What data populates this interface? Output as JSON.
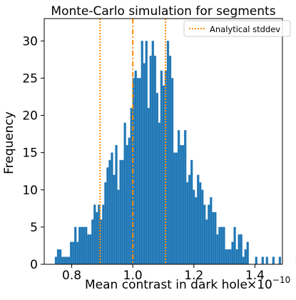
{
  "chart_data": {
    "type": "histogram",
    "title": "Monte-Carlo simulation for segments",
    "xlabel": "Mean contrast in dark hole",
    "ylabel": "Frequency",
    "x_scale_text": "×10",
    "x_scale_exponent": "−10",
    "xlim": [
      0.71,
      1.49
    ],
    "ylim": [
      0,
      33
    ],
    "x_ticks": [
      {
        "value": 0.8,
        "label": "0.8"
      },
      {
        "value": 1.0,
        "label": "1.0"
      },
      {
        "value": 1.2,
        "label": "1.2"
      },
      {
        "value": 1.4,
        "label": "1.4"
      }
    ],
    "y_ticks": [
      {
        "value": 0,
        "label": "0"
      },
      {
        "value": 5,
        "label": "5"
      },
      {
        "value": 10,
        "label": "10"
      },
      {
        "value": 15,
        "label": "15"
      },
      {
        "value": 20,
        "label": "20"
      },
      {
        "value": 25,
        "label": "25"
      },
      {
        "value": 30,
        "label": "30"
      }
    ],
    "bin_start": 0.745,
    "bin_width": 0.00705,
    "counts": [
      1,
      2,
      2,
      1,
      1,
      1,
      1,
      3,
      3,
      5,
      3,
      5,
      5,
      5,
      5,
      4,
      4,
      6,
      8,
      7,
      8,
      6,
      8,
      11,
      13,
      14,
      15,
      12,
      16,
      10,
      14,
      14,
      19,
      16,
      17,
      21,
      25,
      26,
      25,
      25,
      30,
      27,
      30,
      21,
      28,
      30,
      28,
      23,
      19,
      26,
      24,
      26,
      30,
      28,
      25,
      15,
      15,
      18,
      16,
      16,
      18,
      11,
      12,
      14,
      10,
      9,
      12,
      11,
      10,
      8,
      6,
      8,
      9,
      7,
      7,
      4,
      5,
      5,
      5,
      2,
      2,
      2,
      3,
      5,
      2,
      4,
      4,
      1,
      2,
      3,
      0,
      0,
      0,
      1,
      0,
      0,
      1,
      0,
      1,
      0,
      0,
      1,
      0,
      0,
      1,
      0,
      0,
      0,
      0,
      0,
      0,
      0,
      1
    ],
    "bar_color": "#1f77b4",
    "reference_lines": [
      {
        "x": 0.893,
        "style": "dotted",
        "color": "#ff8c00"
      },
      {
        "x": 1.0,
        "style": "dashdot",
        "color": "#ff8c00"
      },
      {
        "x": 1.107,
        "style": "dotted",
        "color": "#ff8c00"
      }
    ],
    "legend": {
      "position": "top-right",
      "entries": [
        {
          "label": "Analytical stddev",
          "color": "#ff8c00",
          "style": "dotted"
        }
      ]
    },
    "grid": false
  }
}
